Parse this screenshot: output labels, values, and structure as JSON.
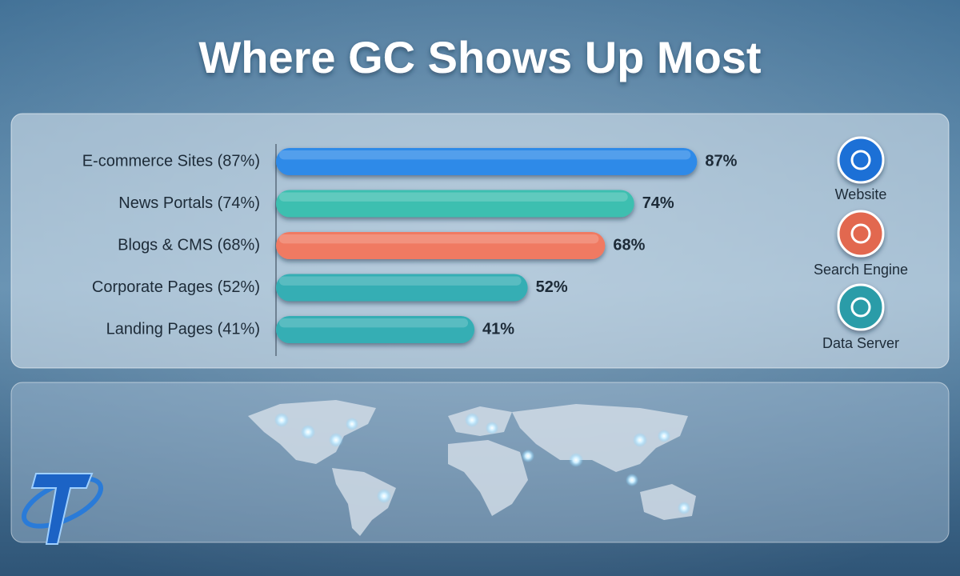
{
  "chart_data": {
    "type": "bar",
    "orientation": "horizontal",
    "title": "Where GC Shows Up Most",
    "categories": [
      "E-commerce Sites (87%)",
      "News Portals (74%)",
      "Blogs & CMS (68%)",
      "Corporate Pages (52%)",
      "Landing Pages (41%)"
    ],
    "values": [
      87,
      74,
      68,
      52,
      41
    ],
    "value_labels": [
      "87%",
      "74%",
      "68%",
      "52%",
      "41%"
    ],
    "colors": [
      "#2f8ae8",
      "#3cbfb0",
      "#f07a62",
      "#34aeb4",
      "#34aeb4"
    ],
    "icons": [
      "Website",
      "Search Engine",
      "Data Server"
    ]
  }
}
